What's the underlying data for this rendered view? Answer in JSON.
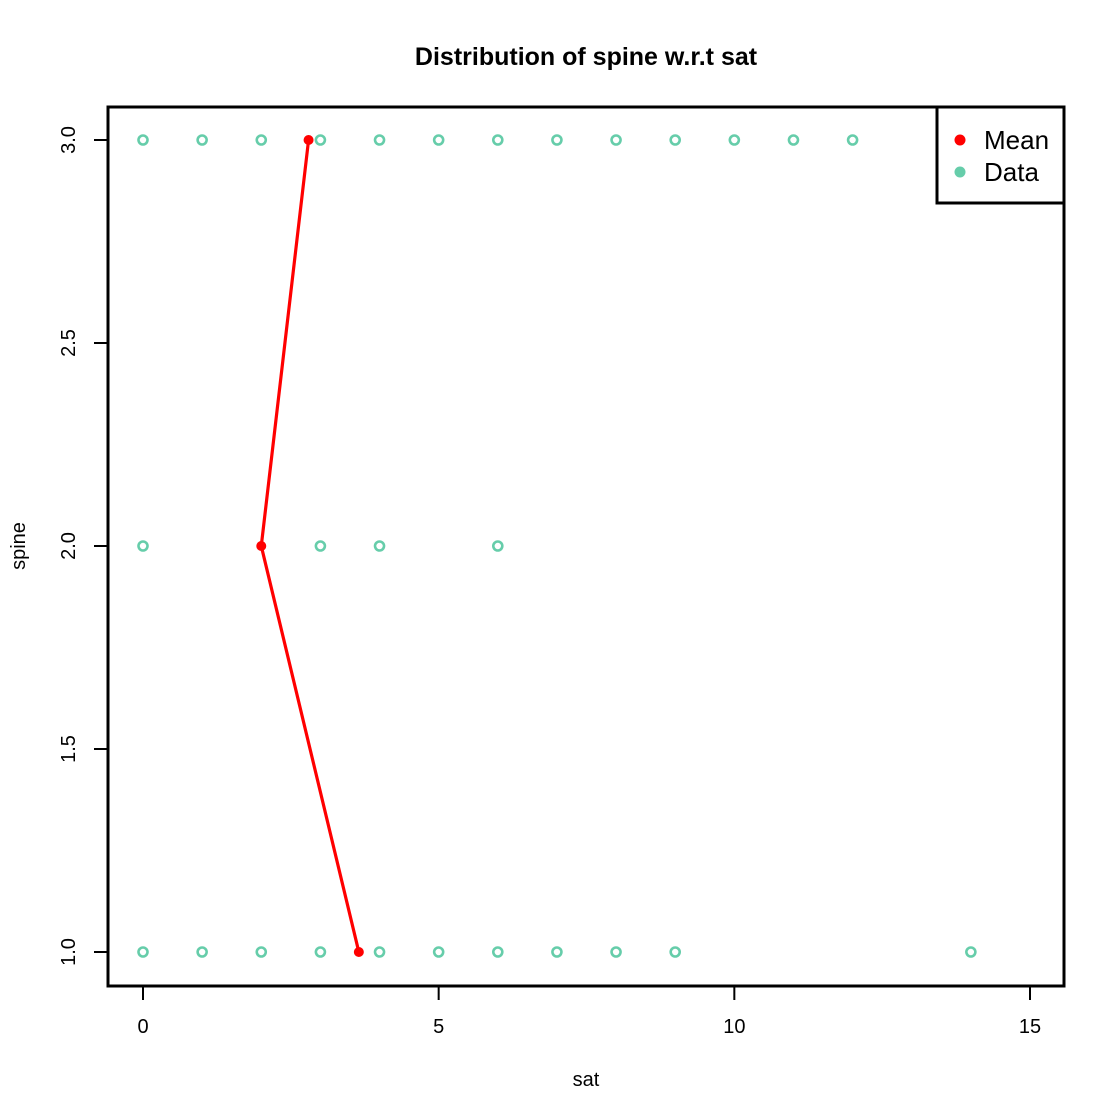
{
  "chart_data": {
    "type": "scatter",
    "title": "Distribution of spine w.r.t sat",
    "xlabel": "sat",
    "ylabel": "spine",
    "xlim": [
      0,
      15
    ],
    "ylim": [
      1.0,
      3.0
    ],
    "x_ticks": [
      "0",
      "5",
      "10",
      "15"
    ],
    "y_ticks": [
      "1.0",
      "1.5",
      "2.0",
      "2.5",
      "3.0"
    ],
    "grid": false,
    "legend": {
      "position": "top-right",
      "entries": [
        {
          "label": "Mean",
          "color": "#ff0000"
        },
        {
          "label": "Data",
          "color": "#66cdaa"
        }
      ]
    },
    "series": [
      {
        "name": "Data",
        "color": "#66cdaa",
        "marker": "open-circle",
        "points": [
          [
            0,
            3
          ],
          [
            1,
            3
          ],
          [
            2,
            3
          ],
          [
            3,
            3
          ],
          [
            4,
            3
          ],
          [
            5,
            3
          ],
          [
            6,
            3
          ],
          [
            7,
            3
          ],
          [
            8,
            3
          ],
          [
            9,
            3
          ],
          [
            10,
            3
          ],
          [
            11,
            3
          ],
          [
            12,
            3
          ],
          [
            0,
            2
          ],
          [
            3,
            2
          ],
          [
            4,
            2
          ],
          [
            6,
            2
          ],
          [
            0,
            1
          ],
          [
            1,
            1
          ],
          [
            2,
            1
          ],
          [
            3,
            1
          ],
          [
            4,
            1
          ],
          [
            5,
            1
          ],
          [
            6,
            1
          ],
          [
            7,
            1
          ],
          [
            8,
            1
          ],
          [
            9,
            1
          ],
          [
            14,
            1
          ]
        ]
      },
      {
        "name": "Mean",
        "color": "#ff0000",
        "marker": "filled-circle-line",
        "points": [
          [
            2.8,
            3
          ],
          [
            2.0,
            2
          ],
          [
            3.65,
            1
          ]
        ]
      }
    ]
  }
}
